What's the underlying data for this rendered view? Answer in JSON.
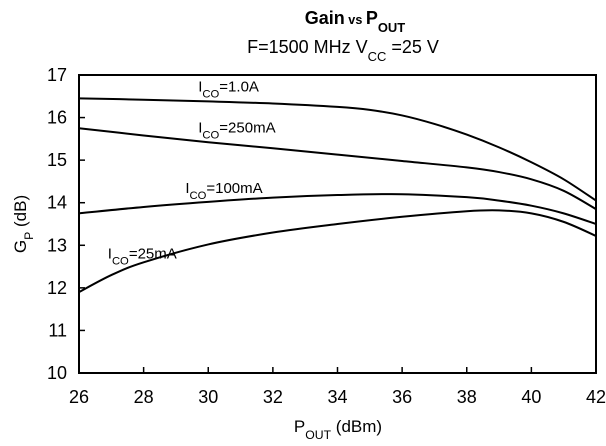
{
  "chart_data": {
    "type": "line",
    "title": {
      "parts": [
        {
          "text": "Gain",
          "sub": null
        },
        {
          "text": " vs ",
          "sub": null,
          "small": true
        },
        {
          "text": "P",
          "sub": "OUT"
        }
      ]
    },
    "subtitle": {
      "parts": [
        {
          "text": "F=1500 MHz V",
          "sub": "CC"
        },
        {
          "text": " =25 V",
          "sub": null
        }
      ]
    },
    "xlabel": {
      "main": "P",
      "sub": "OUT",
      "rest": " (dBm)"
    },
    "ylabel": {
      "main": "G",
      "sub": "P",
      "rest": " (dB)"
    },
    "xlim": [
      26,
      42
    ],
    "ylim": [
      10,
      17
    ],
    "xticks": [
      26,
      28,
      30,
      32,
      34,
      36,
      38,
      40,
      42
    ],
    "yticks": [
      10,
      11,
      12,
      13,
      14,
      15,
      16,
      17
    ],
    "grid": false,
    "legend": "none",
    "series": [
      {
        "name": "ICO=1.0A",
        "label": {
          "main": "I",
          "sub": "CO",
          "rest": "=1.0A"
        },
        "x": [
          26,
          28,
          30,
          32,
          34,
          35,
          36,
          37,
          38,
          39,
          40,
          41,
          42
        ],
        "y": [
          16.45,
          16.42,
          16.38,
          16.33,
          16.25,
          16.18,
          16.05,
          15.85,
          15.6,
          15.3,
          14.95,
          14.55,
          14.05
        ]
      },
      {
        "name": "ICO=250mA",
        "label": {
          "main": "I",
          "sub": "CO",
          "rest": "=250mA"
        },
        "x": [
          26,
          28,
          30,
          32,
          34,
          36,
          38,
          39,
          40,
          41,
          42
        ],
        "y": [
          15.75,
          15.58,
          15.42,
          15.28,
          15.13,
          14.98,
          14.83,
          14.72,
          14.55,
          14.28,
          13.85
        ]
      },
      {
        "name": "ICO=100mA",
        "label": {
          "main": "I",
          "sub": "CO",
          "rest": "=100mA"
        },
        "x": [
          26,
          28,
          30,
          32,
          34,
          36,
          38,
          39,
          40,
          41,
          42
        ],
        "y": [
          13.75,
          13.9,
          14.02,
          14.12,
          14.18,
          14.2,
          14.13,
          14.05,
          13.93,
          13.75,
          13.5
        ]
      },
      {
        "name": "ICO=25mA",
        "label": {
          "main": "I",
          "sub": "CO",
          "rest": "=25mA"
        },
        "x": [
          26,
          27,
          28,
          30,
          32,
          34,
          36,
          38,
          39,
          40,
          41,
          42
        ],
        "y": [
          11.9,
          12.3,
          12.6,
          13.02,
          13.3,
          13.5,
          13.67,
          13.8,
          13.82,
          13.75,
          13.55,
          13.22
        ]
      }
    ]
  }
}
